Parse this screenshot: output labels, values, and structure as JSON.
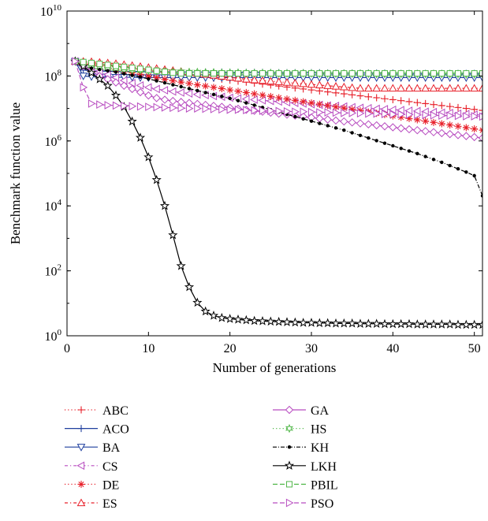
{
  "chart_data": {
    "type": "line",
    "title": "",
    "xlabel": "Number of generations",
    "ylabel": "Benchmark function value",
    "xlim": [
      0,
      51
    ],
    "ylim": [
      1,
      10000000000
    ],
    "yscale": "log",
    "grid": false,
    "legend_position": "bottom",
    "x_ticks": [
      0,
      10,
      20,
      30,
      40,
      50
    ],
    "y_ticks": [
      {
        "value": 1,
        "base": "10",
        "exp": "0"
      },
      {
        "value": 100,
        "base": "10",
        "exp": "2"
      },
      {
        "value": 10000,
        "base": "10",
        "exp": "4"
      },
      {
        "value": 1000000,
        "base": "10",
        "exp": "6"
      },
      {
        "value": 100000000,
        "base": "10",
        "exp": "8"
      },
      {
        "value": 10000000000,
        "base": "10",
        "exp": "10"
      }
    ],
    "x": [
      1,
      2,
      3,
      4,
      5,
      6,
      7,
      8,
      9,
      10,
      11,
      12,
      13,
      14,
      15,
      16,
      17,
      18,
      19,
      20,
      21,
      22,
      23,
      24,
      25,
      26,
      27,
      28,
      29,
      30,
      31,
      32,
      33,
      34,
      35,
      36,
      37,
      38,
      39,
      40,
      41,
      42,
      43,
      44,
      45,
      46,
      47,
      48,
      49,
      50,
      51
    ],
    "series": [
      {
        "name": "ABC",
        "color": "#e8202a",
        "marker": "plus",
        "dash": "1.2,3",
        "y_log": [
          8.45,
          8.42,
          8.4,
          8.38,
          8.36,
          8.33,
          8.3,
          8.27,
          8.24,
          8.2,
          8.16,
          8.12,
          8.09,
          8.05,
          8.02,
          7.99,
          7.96,
          7.93,
          7.9,
          7.87,
          7.84,
          7.81,
          7.78,
          7.75,
          7.72,
          7.69,
          7.66,
          7.63,
          7.6,
          7.57,
          7.54,
          7.51,
          7.48,
          7.45,
          7.42,
          7.39,
          7.36,
          7.33,
          7.3,
          7.27,
          7.24,
          7.21,
          7.18,
          7.15,
          7.12,
          7.09,
          7.06,
          7.03,
          7.0,
          6.97,
          6.94
        ]
      },
      {
        "name": "ACO",
        "color": "#1f3f9e",
        "marker": "plus",
        "dash": "",
        "y_log": [
          8.45,
          8.18,
          8.16,
          8.15,
          8.15,
          8.14,
          8.14,
          8.14,
          8.14,
          8.13,
          8.13,
          8.13,
          8.13,
          8.13,
          8.12,
          8.12,
          8.12,
          8.12,
          8.12,
          8.11,
          8.11,
          8.11,
          8.11,
          8.11,
          8.1,
          8.1,
          8.1,
          8.1,
          8.1,
          8.1,
          8.1,
          8.09,
          8.09,
          8.09,
          8.09,
          8.09,
          8.09,
          8.09,
          8.09,
          8.09,
          8.08,
          8.08,
          8.08,
          8.08,
          8.08,
          8.08,
          8.08,
          8.08,
          8.08,
          8.08,
          8.08
        ]
      },
      {
        "name": "BA",
        "color": "#1f3f9e",
        "marker": "tri-down",
        "dash": "",
        "y_log": [
          8.45,
          8.0,
          7.98,
          7.97,
          7.97,
          7.96,
          7.96,
          7.96,
          7.95,
          7.95,
          7.95,
          7.95,
          7.95,
          7.95,
          7.95,
          7.95,
          7.95,
          7.95,
          7.95,
          7.95,
          7.95,
          7.95,
          7.95,
          7.95,
          7.95,
          7.95,
          7.95,
          7.95,
          7.95,
          7.95,
          7.95,
          7.95,
          7.95,
          7.95,
          7.95,
          7.95,
          7.95,
          7.95,
          7.95,
          7.95,
          7.95,
          7.95,
          7.95,
          7.95,
          7.95,
          7.95,
          7.95,
          7.95,
          7.95,
          7.95,
          7.95
        ]
      },
      {
        "name": "CS",
        "color": "#b84cc0",
        "marker": "tri-left",
        "dash": "4,3,1.2,3",
        "y_log": [
          8.45,
          8.32,
          8.22,
          8.13,
          8.04,
          7.95,
          7.86,
          7.78,
          7.71,
          7.65,
          7.6,
          7.56,
          7.52,
          7.49,
          7.46,
          7.43,
          7.41,
          7.38,
          7.36,
          7.33,
          7.31,
          7.29,
          7.27,
          7.25,
          7.23,
          7.21,
          7.19,
          7.17,
          7.15,
          7.13,
          7.11,
          7.09,
          7.08,
          7.06,
          7.04,
          7.02,
          7.01,
          6.99,
          6.98,
          6.96,
          6.95,
          6.93,
          6.92,
          6.9,
          6.89,
          6.87,
          6.86,
          6.84,
          6.83,
          6.81,
          6.8
        ]
      },
      {
        "name": "DE",
        "color": "#e8202a",
        "marker": "star",
        "dash": "1.2,3",
        "y_log": [
          8.45,
          8.4,
          8.35,
          8.3,
          8.25,
          8.2,
          8.15,
          8.1,
          8.05,
          8.0,
          7.95,
          7.9,
          7.85,
          7.81,
          7.77,
          7.73,
          7.69,
          7.65,
          7.61,
          7.57,
          7.53,
          7.49,
          7.45,
          7.41,
          7.37,
          7.33,
          7.29,
          7.25,
          7.21,
          7.17,
          7.13,
          7.09,
          7.05,
          7.01,
          6.97,
          6.93,
          6.89,
          6.85,
          6.81,
          6.77,
          6.73,
          6.69,
          6.65,
          6.61,
          6.57,
          6.53,
          6.49,
          6.45,
          6.41,
          6.37,
          6.33
        ]
      },
      {
        "name": "ES",
        "color": "#e8202a",
        "marker": "tri-up",
        "dash": "4,3,1.2,3",
        "y_log": [
          8.45,
          8.45,
          8.44,
          8.42,
          8.4,
          8.38,
          8.35,
          8.32,
          8.29,
          8.26,
          8.23,
          8.2,
          8.17,
          8.14,
          8.11,
          8.08,
          8.05,
          8.02,
          7.99,
          7.96,
          7.93,
          7.9,
          7.88,
          7.86,
          7.84,
          7.82,
          7.8,
          7.78,
          7.76,
          7.74,
          7.72,
          7.7,
          7.68,
          7.66,
          7.64,
          7.62,
          7.62,
          7.62,
          7.62,
          7.62,
          7.62,
          7.62,
          7.62,
          7.62,
          7.62,
          7.62,
          7.62,
          7.62,
          7.62,
          7.62,
          7.62
        ]
      },
      {
        "name": "GA",
        "color": "#b84cc0",
        "marker": "diamond",
        "dash": "",
        "y_log": [
          8.45,
          8.3,
          8.15,
          8.0,
          7.9,
          7.8,
          7.7,
          7.6,
          7.5,
          7.4,
          7.32,
          7.27,
          7.23,
          7.2,
          7.17,
          7.14,
          7.11,
          7.08,
          7.05,
          7.02,
          6.99,
          6.96,
          6.93,
          6.9,
          6.87,
          6.84,
          6.81,
          6.78,
          6.75,
          6.72,
          6.69,
          6.66,
          6.63,
          6.6,
          6.57,
          6.54,
          6.51,
          6.48,
          6.45,
          6.42,
          6.39,
          6.36,
          6.33,
          6.3,
          6.27,
          6.24,
          6.21,
          6.18,
          6.15,
          6.12,
          6.09
        ]
      },
      {
        "name": "HS",
        "color": "#52b84a",
        "marker": "hexstar",
        "dash": "1.2,3",
        "y_log": [
          8.45,
          8.36,
          8.31,
          8.27,
          8.24,
          8.22,
          8.2,
          8.18,
          8.17,
          8.16,
          8.15,
          8.14,
          8.13,
          8.13,
          8.12,
          8.12,
          8.11,
          8.11,
          8.1,
          8.1,
          8.1,
          8.09,
          8.09,
          8.09,
          8.09,
          8.08,
          8.08,
          8.08,
          8.08,
          8.08,
          8.07,
          8.07,
          8.07,
          8.07,
          8.07,
          8.07,
          8.07,
          8.06,
          8.06,
          8.06,
          8.06,
          8.06,
          8.06,
          8.06,
          8.06,
          8.06,
          8.06,
          8.06,
          8.05,
          8.05,
          8.05
        ]
      },
      {
        "name": "KH",
        "color": "#000000",
        "marker": "dot",
        "dash": "5,2,1,2",
        "y_log": [
          8.45,
          8.3,
          8.24,
          8.2,
          8.16,
          8.12,
          8.07,
          8.02,
          7.97,
          7.91,
          7.85,
          7.79,
          7.73,
          7.67,
          7.61,
          7.55,
          7.49,
          7.43,
          7.37,
          7.31,
          7.24,
          7.17,
          7.1,
          7.03,
          6.96,
          6.89,
          6.82,
          6.75,
          6.68,
          6.61,
          6.54,
          6.47,
          6.4,
          6.33,
          6.25,
          6.17,
          6.09,
          6.01,
          5.93,
          5.85,
          5.77,
          5.69,
          5.61,
          5.52,
          5.43,
          5.34,
          5.24,
          5.14,
          5.04,
          4.93,
          4.31
        ]
      },
      {
        "name": "LKH",
        "color": "#000000",
        "marker": "star5",
        "dash": "",
        "y_log": [
          8.45,
          8.3,
          8.1,
          7.9,
          7.7,
          7.4,
          7.05,
          6.6,
          6.1,
          5.5,
          4.8,
          4.0,
          3.1,
          2.15,
          1.5,
          1.02,
          0.75,
          0.62,
          0.55,
          0.52,
          0.5,
          0.48,
          0.46,
          0.45,
          0.44,
          0.43,
          0.42,
          0.41,
          0.4,
          0.4,
          0.39,
          0.39,
          0.38,
          0.38,
          0.38,
          0.37,
          0.37,
          0.37,
          0.36,
          0.36,
          0.36,
          0.36,
          0.35,
          0.35,
          0.35,
          0.35,
          0.35,
          0.34,
          0.34,
          0.34,
          0.34
        ]
      },
      {
        "name": "PBIL",
        "color": "#52b84a",
        "marker": "square",
        "dash": "6,3",
        "y_log": [
          8.45,
          8.43,
          8.4,
          8.37,
          8.34,
          8.31,
          8.28,
          8.25,
          8.22,
          8.19,
          8.16,
          8.13,
          8.1,
          8.08,
          8.08,
          8.08,
          8.08,
          8.08,
          8.08,
          8.08,
          8.08,
          8.08,
          8.08,
          8.08,
          8.08,
          8.08,
          8.08,
          8.08,
          8.08,
          8.08,
          8.08,
          8.08,
          8.08,
          8.08,
          8.08,
          8.08,
          8.08,
          8.08,
          8.08,
          8.08,
          8.08,
          8.08,
          8.08,
          8.08,
          8.08,
          8.08,
          8.08,
          8.08,
          8.08,
          8.08,
          8.08
        ]
      },
      {
        "name": "PSO",
        "color": "#b84cc0",
        "marker": "tri-right",
        "dash": "6,3",
        "y_log": [
          8.45,
          7.65,
          7.15,
          7.12,
          7.1,
          7.09,
          7.08,
          7.07,
          7.06,
          7.05,
          7.04,
          7.03,
          7.02,
          7.01,
          7.0,
          7.0,
          6.99,
          6.98,
          6.97,
          6.96,
          6.96,
          6.95,
          6.94,
          6.93,
          6.93,
          6.92,
          6.91,
          6.9,
          6.9,
          6.89,
          6.88,
          6.88,
          6.87,
          6.86,
          6.86,
          6.85,
          6.84,
          6.84,
          6.83,
          6.82,
          6.82,
          6.81,
          6.8,
          6.8,
          6.79,
          6.78,
          6.78,
          6.77,
          6.76,
          6.76,
          6.75
        ]
      }
    ]
  }
}
